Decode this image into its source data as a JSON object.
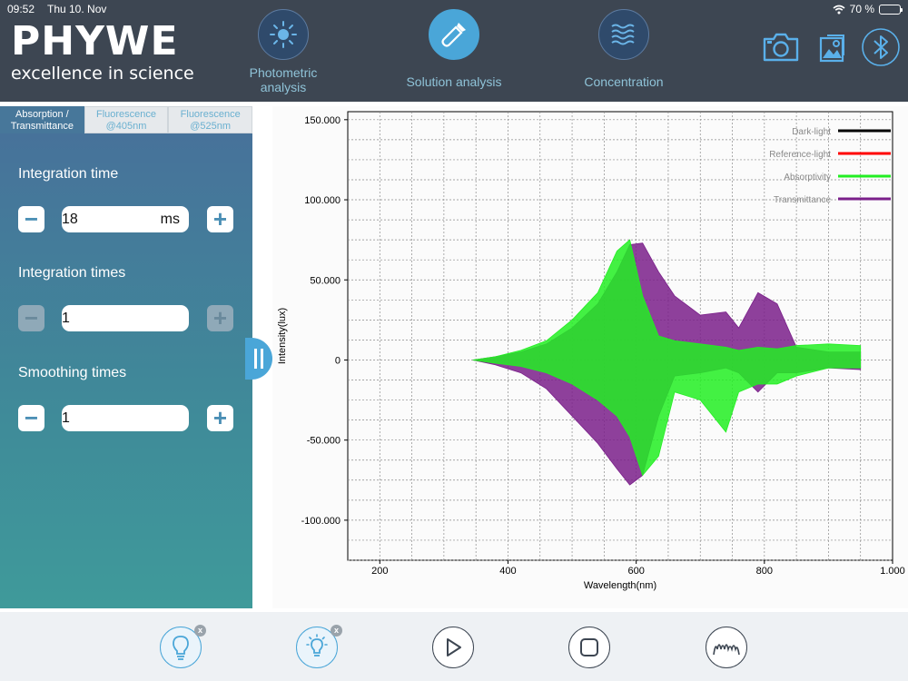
{
  "status_bar": {
    "time": "09:52",
    "date": "Thu 10. Nov",
    "battery": "70 %",
    "battery_level": 0.7
  },
  "header": {
    "brand": "PHYWE",
    "slogan": "excellence in science",
    "nav": [
      {
        "label_line1": "Photometric",
        "label_line2": "analysis",
        "icon": "sun-icon",
        "active": false
      },
      {
        "label_line1": "Solution analysis",
        "label_line2": "",
        "icon": "pipette-icon",
        "active": true
      },
      {
        "label_line1": "Concentration",
        "label_line2": "",
        "icon": "waves-icon",
        "active": false
      }
    ],
    "icons": [
      "camera-icon",
      "gallery-icon",
      "bluetooth-icon"
    ]
  },
  "tabs": [
    {
      "line1": "Absorption /",
      "line2": "Transmittance",
      "active": true
    },
    {
      "line1": "Fluorescence",
      "line2": "@405nm",
      "active": false
    },
    {
      "line1": "Fluorescence",
      "line2": "@525nm",
      "active": false
    }
  ],
  "settings": {
    "integration_time": {
      "label": "Integration time",
      "value": "18",
      "unit": "ms"
    },
    "integration_times": {
      "label": "Integration times",
      "value": "1",
      "unit": ""
    },
    "smoothing_times": {
      "label": "Smoothing times",
      "value": "1",
      "unit": ""
    }
  },
  "chart_data": {
    "type": "line",
    "xlabel": "Wavelength(nm)",
    "ylabel": "Intensity(lux)",
    "xlim": [
      150,
      1000
    ],
    "ylim": [
      -125000,
      155000
    ],
    "x_ticks": [
      200,
      400,
      600,
      800,
      1000
    ],
    "x_tick_labels": [
      "200",
      "400",
      "600",
      "800",
      "1.000"
    ],
    "y_ticks": [
      150000,
      100000,
      50000,
      0,
      -50000,
      -100000
    ],
    "y_tick_labels": [
      "150.000",
      "100.000",
      "50.000",
      "0",
      "-50.000",
      "-100.000"
    ],
    "grid": true,
    "legend_position": "top-right",
    "series": [
      {
        "name": "Dark-light",
        "color": "#000000",
        "values": []
      },
      {
        "name": "Reference-light",
        "color": "#ff0000",
        "values": []
      },
      {
        "name": "Absorptivity",
        "color": "#22ee22",
        "envelope_x": [
          345,
          380,
          420,
          460,
          500,
          540,
          570,
          590,
          610,
          635,
          660,
          700,
          740,
          760,
          790,
          820,
          850,
          900,
          950
        ],
        "upper": [
          0,
          2000,
          6000,
          12000,
          25000,
          42000,
          68000,
          75000,
          40000,
          15000,
          12000,
          10000,
          8000,
          6000,
          8000,
          7000,
          9000,
          10000,
          9000
        ],
        "lower": [
          0,
          -2000,
          -4000,
          -8000,
          -15000,
          -25000,
          -35000,
          -48000,
          -72000,
          -60000,
          -20000,
          -25000,
          -45000,
          -20000,
          -15000,
          -15000,
          -10000,
          -5000,
          -5000
        ]
      },
      {
        "name": "Transmittance",
        "color": "#7a1f8a",
        "envelope_x": [
          345,
          380,
          420,
          460,
          500,
          540,
          570,
          590,
          610,
          635,
          660,
          700,
          740,
          760,
          790,
          820,
          850,
          900,
          950
        ],
        "upper": [
          0,
          2000,
          5000,
          10000,
          20000,
          35000,
          55000,
          72000,
          73000,
          55000,
          40000,
          28000,
          30000,
          20000,
          42000,
          35000,
          8000,
          5000,
          5000
        ],
        "lower": [
          0,
          -3000,
          -8000,
          -18000,
          -35000,
          -52000,
          -68000,
          -78000,
          -72000,
          -35000,
          -10000,
          -8000,
          -5000,
          -8000,
          -20000,
          -8000,
          -8000,
          -5000,
          -6000
        ]
      }
    ]
  },
  "toolbar": [
    {
      "icon": "bulb-off-icon",
      "has_close": true,
      "style": "blue"
    },
    {
      "icon": "bulb-on-icon",
      "has_close": true,
      "style": "blue"
    },
    {
      "icon": "play-icon",
      "has_close": false,
      "style": "dark"
    },
    {
      "icon": "stop-icon",
      "has_close": false,
      "style": "dark"
    },
    {
      "icon": "spectrum-icon",
      "has_close": false,
      "style": "dark"
    }
  ],
  "badge_close": "x",
  "colors": {
    "accent": "#4aa6d8",
    "header_bg": "#3d4652",
    "panel_top": "#47729a",
    "panel_bottom": "#3f9a9a"
  }
}
